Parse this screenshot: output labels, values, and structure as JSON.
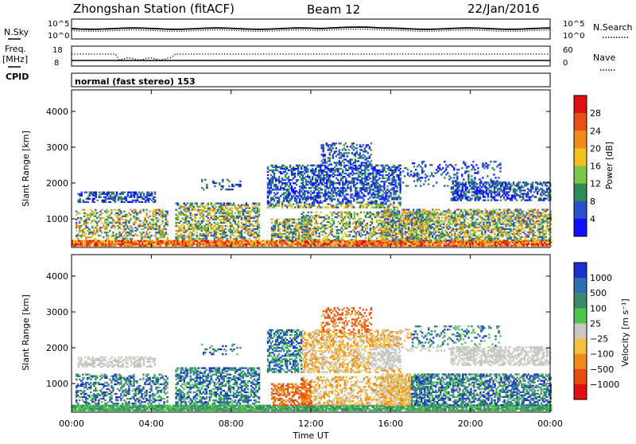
{
  "header": {
    "station": "Zhongshan Station (fitACF)",
    "beam": "Beam 12",
    "date": "22/Jan/2016"
  },
  "strip_panels": {
    "nsky": {
      "label": "N.Sky",
      "top_tick": "10^5",
      "bottom_tick": "10^0"
    },
    "nsearch": {
      "label": "N.Search",
      "top_tick": "10^5",
      "bottom_tick": "10^0"
    },
    "freq": {
      "label_line1": "Freq.",
      "label_line2": "[MHz]",
      "top_tick": "18",
      "bottom_tick": "8"
    },
    "nave": {
      "label": "Nave",
      "top_tick": "60",
      "bottom_tick": "0"
    },
    "cpid": {
      "label": "CPID",
      "value": "normal (fast stereo) 153"
    }
  },
  "chart_data": [
    {
      "type": "heatmap",
      "name": "power",
      "ylabel": "Slant Range [km]",
      "yticks": [
        "1000",
        "2000",
        "3000",
        "4000"
      ],
      "ylim": [
        200,
        4600
      ],
      "xlim_hours": [
        0,
        24
      ],
      "colorbar": {
        "label": "Power [dB]",
        "ticks": [
          "4",
          "8",
          "12",
          "16",
          "20",
          "24",
          "28"
        ],
        "colors": [
          "#1010ff",
          "#2850c8",
          "#2e8b57",
          "#7cc64a",
          "#f2c21b",
          "#f08a1a",
          "#e8501a",
          "#e01010"
        ]
      }
    },
    {
      "type": "heatmap",
      "name": "velocity",
      "ylabel": "Slant Range [km]",
      "yticks": [
        "1000",
        "2000",
        "3000",
        "4000"
      ],
      "ylim": [
        200,
        4600
      ],
      "xlim_hours": [
        0,
        24
      ],
      "xlabel": "Time UT",
      "xticks": [
        "00:00",
        "04:00",
        "08:00",
        "12:00",
        "16:00",
        "20:00",
        "00:00"
      ],
      "colorbar": {
        "label": "Velocity [m s⁻¹]",
        "ticks": [
          "1000",
          "500",
          "100",
          "25",
          "−25",
          "−100",
          "−500",
          "−1000"
        ],
        "colors": [
          "#1a2fd0",
          "#2f6fb0",
          "#3a8a6a",
          "#4ec44e",
          "#c8c8c0",
          "#f5c040",
          "#f08a1a",
          "#e84a10",
          "#e01010"
        ]
      }
    }
  ]
}
